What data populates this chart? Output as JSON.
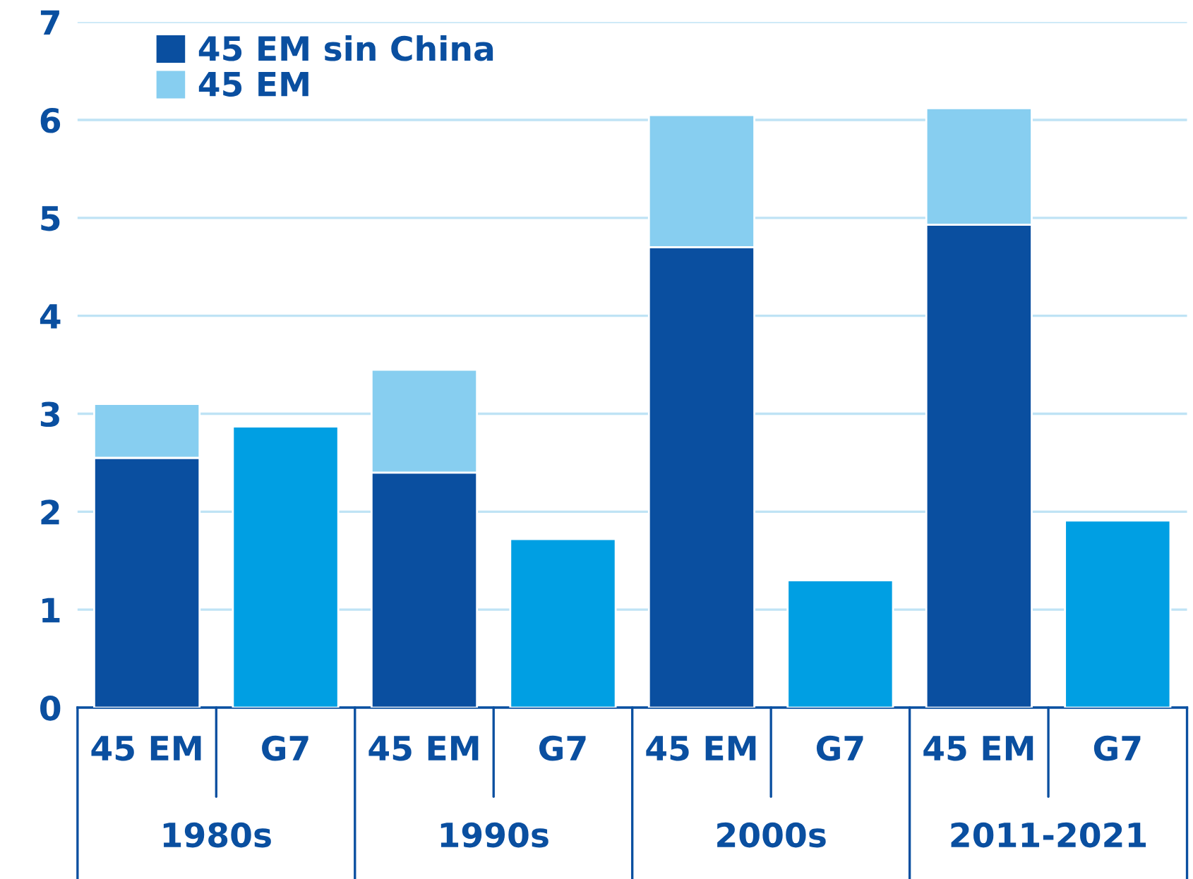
{
  "chart_data": {
    "type": "bar",
    "stacked": true,
    "categories": [
      "45 EM",
      "G7",
      "45 EM",
      "G7",
      "45 EM",
      "G7",
      "45 EM",
      "G7"
    ],
    "series": [
      {
        "name": "45 EM sin China",
        "color": "#0a4fa0",
        "values": [
          2.55,
          null,
          2.4,
          null,
          4.7,
          null,
          4.93,
          null
        ]
      },
      {
        "name": "45 EM",
        "color": "#87cef0",
        "values": [
          0.55,
          null,
          1.05,
          null,
          1.35,
          null,
          1.19,
          null
        ]
      },
      {
        "color": "#009fe3",
        "values": [
          null,
          2.87,
          null,
          1.72,
          null,
          1.3,
          null,
          1.91
        ]
      }
    ],
    "annotations": [
      "1980s",
      "1990s",
      "2000s",
      "2011-2021"
    ],
    "ylim": [
      0,
      7
    ],
    "yticks": [
      0,
      1,
      2,
      3,
      4,
      5,
      6,
      7
    ],
    "grid": "y",
    "legend": "top left"
  }
}
